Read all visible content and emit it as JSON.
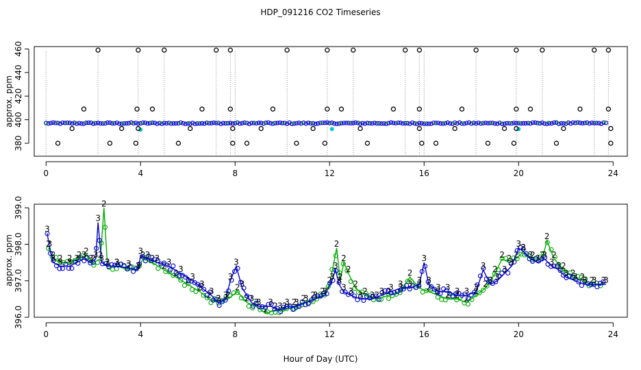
{
  "chart_data": [
    {
      "type": "scatter",
      "title": "HDP_091216  CO2 Timeseries",
      "xlabel": "",
      "ylabel": "approx. ppm",
      "xlim": [
        -0.5,
        24.6
      ],
      "ylim": [
        369,
        462
      ],
      "xticks": [
        0,
        4,
        8,
        12,
        16,
        20,
        24
      ],
      "yticks": [
        380,
        400,
        420,
        440,
        460
      ],
      "series": [
        {
          "name": "blue circles",
          "color": "#0000cc",
          "baseline": 397
        },
        {
          "name": "green points",
          "color": "#00aa00"
        },
        {
          "name": "cyan points",
          "color": "#00cccc"
        },
        {
          "name": "black outliers",
          "color": "#000000"
        }
      ],
      "black_points": {
        "high": [
          2.2,
          3.9,
          5.0,
          7.2,
          7.8,
          10.2,
          11.9,
          13.0,
          15.2,
          15.8,
          18.2,
          19.9,
          21.0,
          23.2,
          23.8
        ],
        "mid": [
          1.6,
          3.85,
          4.5,
          6.6,
          7.8,
          9.6,
          11.9,
          12.5,
          14.7,
          15.8,
          17.6,
          19.9,
          20.5,
          22.6,
          23.8
        ],
        "low_392": [
          1.1,
          3.2,
          3.9,
          6.1,
          7.9,
          9.1,
          11.3,
          13.3,
          15.8,
          17.3,
          19.4,
          19.9,
          21.9,
          23.9
        ],
        "low_380": [
          0.5,
          2.7,
          3.8,
          5.6,
          7.9,
          8.5,
          10.6,
          11.8,
          13.6,
          15.9,
          16.5,
          18.7,
          19.8,
          21.6,
          23.9
        ]
      },
      "cyan_points": [
        [
          4.0,
          391.5
        ],
        [
          12.1,
          392
        ],
        [
          20.0,
          392
        ]
      ]
    },
    {
      "type": "line",
      "title": "",
      "xlabel": "Hour of Day (UTC)",
      "ylabel": "approx. ppm",
      "xlim": [
        -0.5,
        24.6
      ],
      "ylim": [
        396.0,
        399.1
      ],
      "xticks": [
        0,
        4,
        8,
        12,
        16,
        20,
        24
      ],
      "yticks": [
        396.0,
        397.0,
        398.0,
        399.0
      ],
      "series": [
        {
          "name": "3",
          "color": "#0000cc",
          "x": [
            0.05,
            0.15,
            0.3,
            0.6,
            1.0,
            1.3,
            1.6,
            1.9,
            2.1,
            2.2,
            2.35,
            2.6,
            3.0,
            3.5,
            3.9,
            4.0,
            4.3,
            4.7,
            5.2,
            5.7,
            6.2,
            6.6,
            7.0,
            7.3,
            7.6,
            7.8,
            8.05,
            8.3,
            8.7,
            9.0,
            9.5,
            9.9,
            10.2,
            10.6,
            11.0,
            11.4,
            11.8,
            12.1,
            12.25,
            12.4,
            12.6,
            12.9,
            13.3,
            13.8,
            14.2,
            14.6,
            15.0,
            15.4,
            15.8,
            16.0,
            16.2,
            16.6,
            17.0,
            17.4,
            17.8,
            18.2,
            18.5,
            18.8,
            19.1,
            19.4,
            19.7,
            20.0,
            20.2,
            20.5,
            20.8,
            21.1,
            21.4,
            21.7,
            22.0,
            22.4,
            22.8,
            23.2,
            23.7
          ],
          "values": [
            398.3,
            397.9,
            397.5,
            397.4,
            397.4,
            397.5,
            397.6,
            397.5,
            397.6,
            398.6,
            397.5,
            397.4,
            397.4,
            397.35,
            397.3,
            397.7,
            397.6,
            397.5,
            397.4,
            397.2,
            397.0,
            396.8,
            396.6,
            396.4,
            396.5,
            397.0,
            397.4,
            396.8,
            396.4,
            396.3,
            396.3,
            396.2,
            396.3,
            396.3,
            396.4,
            396.5,
            396.6,
            397.0,
            397.3,
            396.9,
            396.7,
            396.6,
            396.5,
            396.5,
            396.6,
            396.7,
            396.8,
            396.8,
            396.9,
            397.5,
            396.9,
            396.7,
            396.7,
            396.6,
            396.6,
            396.7,
            397.3,
            396.9,
            397.0,
            397.2,
            397.4,
            397.9,
            397.8,
            397.6,
            397.5,
            397.6,
            397.4,
            397.3,
            397.1,
            397.0,
            396.9,
            396.9,
            396.9
          ]
        },
        {
          "name": "2",
          "color": "#00aa00",
          "x": [
            0.1,
            0.3,
            0.6,
            1.0,
            1.4,
            1.7,
            2.0,
            2.3,
            2.45,
            2.6,
            3.0,
            3.5,
            3.9,
            4.1,
            4.5,
            5.0,
            5.5,
            6.0,
            6.5,
            6.9,
            7.3,
            7.7,
            8.1,
            8.5,
            8.9,
            9.3,
            9.7,
            10.1,
            10.5,
            10.9,
            11.3,
            11.7,
            12.0,
            12.3,
            12.45,
            12.6,
            12.8,
            13.1,
            13.5,
            14.0,
            14.5,
            15.0,
            15.4,
            15.8,
            16.2,
            16.6,
            17.0,
            17.4,
            17.8,
            18.2,
            18.6,
            19.0,
            19.3,
            19.6,
            19.9,
            20.2,
            20.6,
            21.0,
            21.2,
            21.5,
            21.9,
            22.3,
            22.7,
            23.1,
            23.6
          ],
          "values": [
            397.9,
            397.6,
            397.5,
            397.5,
            397.6,
            397.7,
            397.5,
            397.6,
            399.0,
            397.4,
            397.4,
            397.3,
            397.3,
            397.6,
            397.5,
            397.3,
            397.1,
            396.9,
            396.7,
            396.5,
            396.4,
            396.5,
            396.7,
            396.4,
            396.3,
            396.1,
            396.2,
            396.2,
            396.3,
            396.4,
            396.5,
            396.6,
            396.9,
            397.9,
            397.0,
            397.5,
            397.2,
            396.8,
            396.6,
            396.5,
            396.6,
            396.7,
            397.1,
            396.8,
            396.7,
            396.6,
            396.5,
            396.5,
            396.4,
            396.6,
            396.8,
            397.2,
            397.6,
            397.5,
            397.6,
            397.8,
            397.6,
            397.6,
            398.1,
            397.6,
            397.3,
            397.1,
            397.0,
            396.9,
            396.9
          ]
        }
      ]
    }
  ]
}
